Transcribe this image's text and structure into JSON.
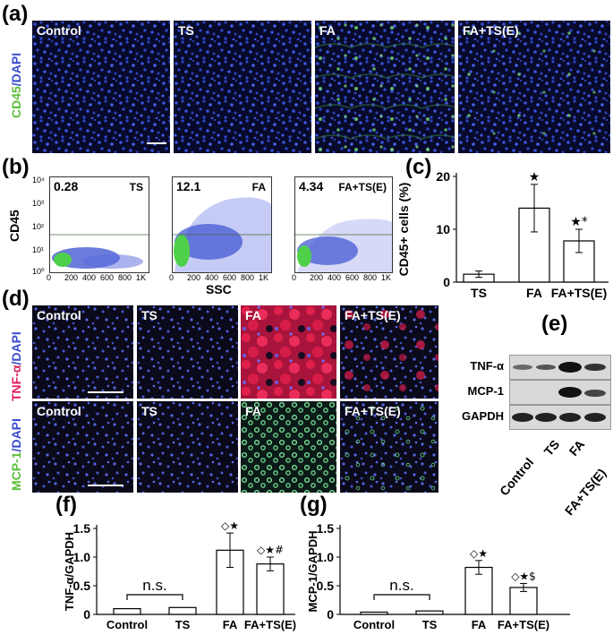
{
  "panel_labels": {
    "a": "(a)",
    "b": "(b)",
    "c": "(c)",
    "d": "(d)",
    "e": "(e)",
    "f": "(f)",
    "g": "(g)"
  },
  "panel_a": {
    "stain_green": "CD45",
    "stain_sep": "/",
    "stain_blue": "DAPI",
    "images": [
      "Control",
      "TS",
      "FA",
      "FA+TS(E)"
    ]
  },
  "panel_b": {
    "y_label": "CD45",
    "x_label": "SSC",
    "x_ticks": [
      "0",
      "200",
      "400",
      "600",
      "800",
      "1K"
    ],
    "y_ticks": [
      "10⁰",
      "10¹",
      "10²",
      "10³",
      "10⁴"
    ],
    "plots": [
      {
        "percent": "0.28",
        "group": "TS"
      },
      {
        "percent": "12.1",
        "group": "FA"
      },
      {
        "percent": "4.34",
        "group": "FA+TS(E)"
      }
    ]
  },
  "panel_d": {
    "row1_stain_red": "TNF-α",
    "row2_stain_green": "MCP-1",
    "stain_sep": "/",
    "stain_blue": "DAPI",
    "images": [
      "Control",
      "TS",
      "FA",
      "FA+TS(E)"
    ]
  },
  "panel_e": {
    "rows": [
      "TNF-α",
      "MCP-1",
      "GAPDH"
    ],
    "lanes": [
      "Control",
      "TS",
      "FA",
      "FA+TS(E)"
    ]
  },
  "chart_data": [
    {
      "type": "bar",
      "panel": "c",
      "categories": [
        "TS",
        "FA",
        "FA+TS(E)"
      ],
      "values": [
        1.5,
        14.0,
        7.8
      ],
      "errors": [
        0.6,
        4.5,
        2.2
      ],
      "ylabel": "CD45+ cells (%)",
      "ylim": [
        0,
        20
      ],
      "yticks": [
        0,
        10,
        20
      ],
      "annotations": [
        "",
        "★",
        "★*"
      ]
    },
    {
      "type": "bar",
      "panel": "f",
      "categories": [
        "Control",
        "TS",
        "FA",
        "FA+TS(E)"
      ],
      "values": [
        0.1,
        0.12,
        1.12,
        0.88
      ],
      "errors": [
        0,
        0,
        0.3,
        0.12
      ],
      "ylabel": "TNF-α/GAPDH",
      "ylim": [
        0,
        1.5
      ],
      "yticks": [
        0,
        0.5,
        1.0,
        1.5
      ],
      "ytick_labels": [
        "0",
        "0.5",
        "1.0",
        "1.5"
      ],
      "bracket_label": "n.s.",
      "annotations": [
        "",
        "",
        "◇★",
        "◇★#"
      ]
    },
    {
      "type": "bar",
      "panel": "g",
      "categories": [
        "Control",
        "TS",
        "FA",
        "FA+TS(E)"
      ],
      "values": [
        0.04,
        0.06,
        0.82,
        0.47
      ],
      "errors": [
        0,
        0,
        0.12,
        0.07
      ],
      "ylabel": "MCP-1/GAPDH",
      "ylim": [
        0,
        1.5
      ],
      "yticks": [
        0,
        0.5,
        1.0,
        1.5
      ],
      "ytick_labels": [
        "0",
        "0.5",
        "1.0",
        "1.5"
      ],
      "bracket_label": "n.s.",
      "annotations": [
        "",
        "",
        "◇★",
        "◇★$"
      ]
    }
  ]
}
